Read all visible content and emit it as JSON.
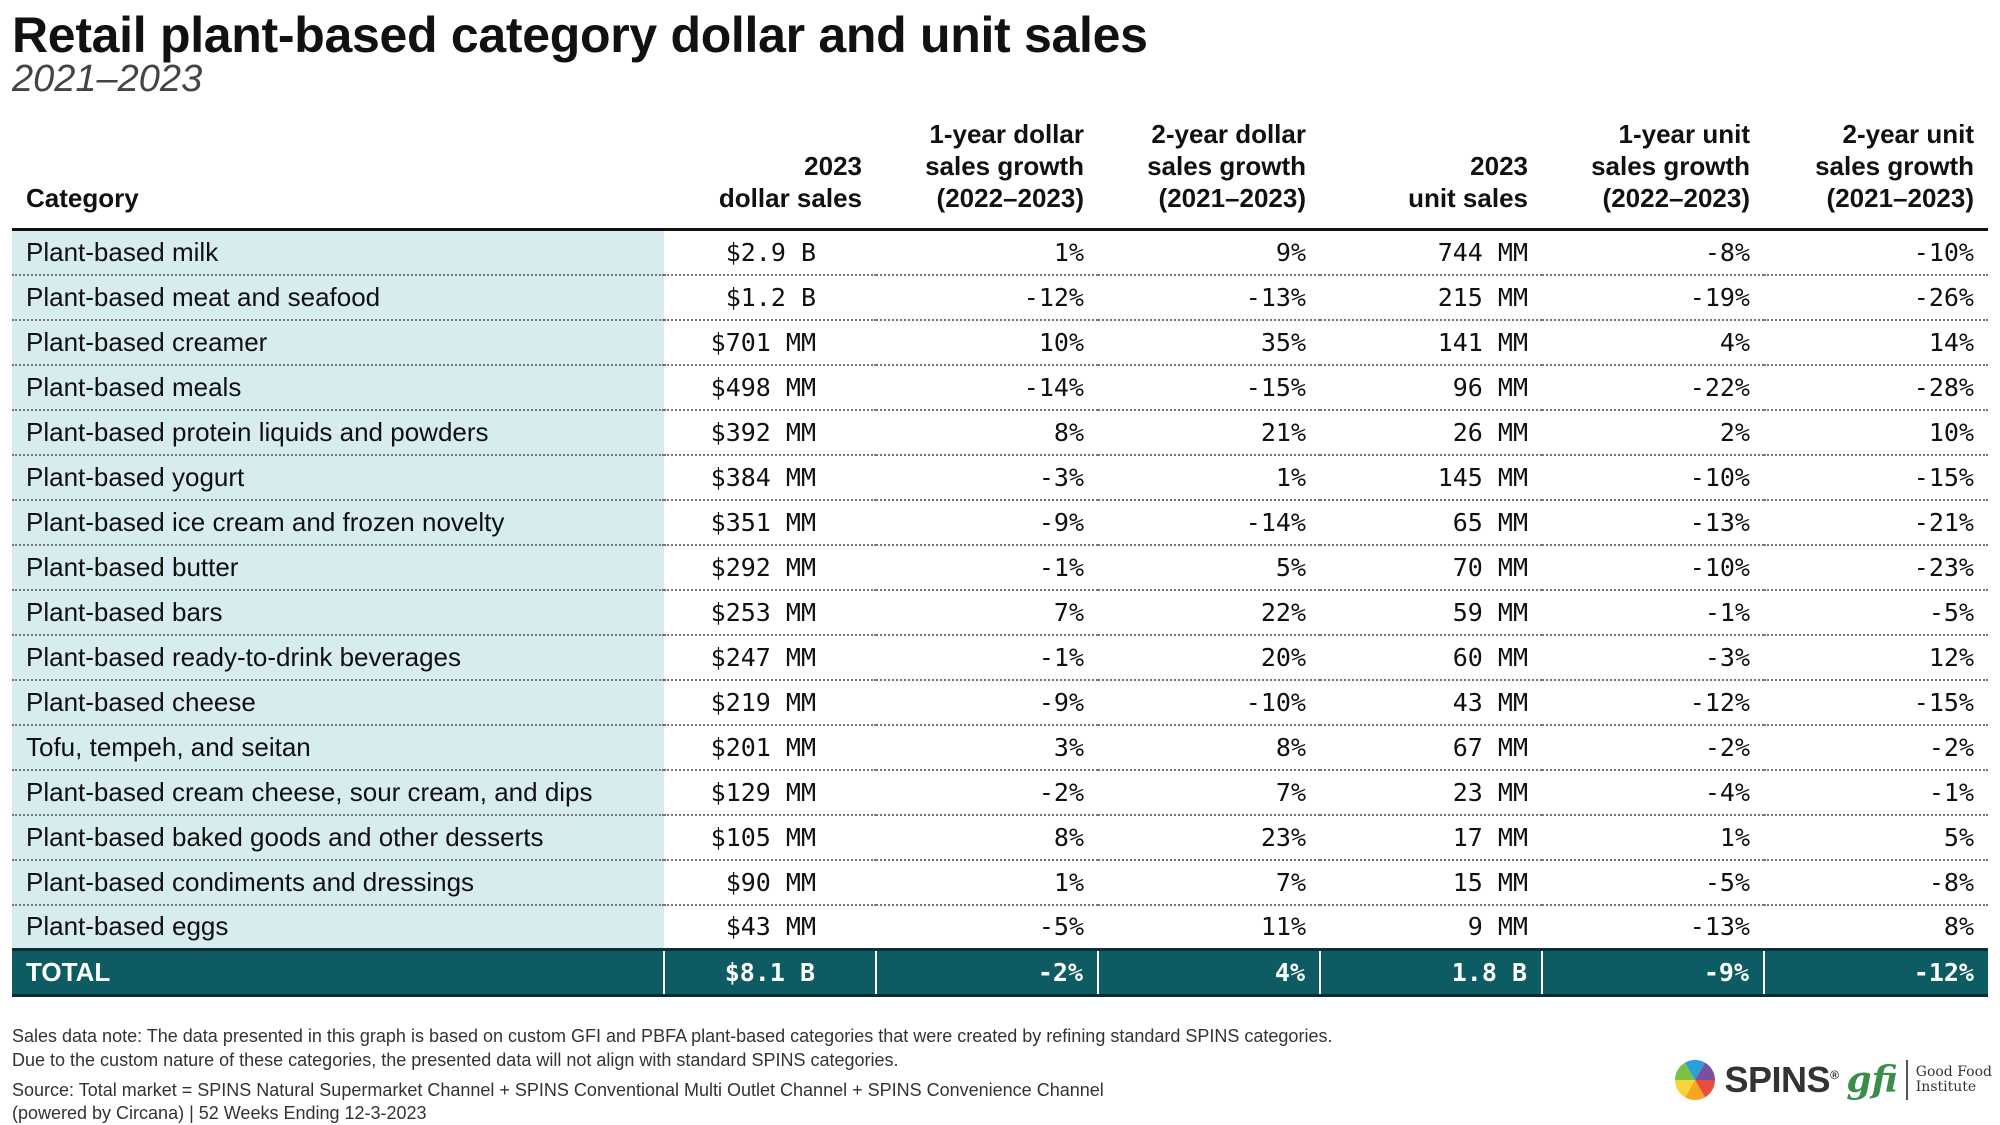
{
  "header": {
    "title": "Retail plant-based category dollar and unit sales",
    "subtitle": "2021–2023"
  },
  "chart_data": {
    "type": "table",
    "title": "Retail plant-based category dollar and unit sales",
    "subtitle": "2021–2023",
    "columns": [
      {
        "key": "category",
        "label_lines": [
          "Category"
        ]
      },
      {
        "key": "dollar_sales_2023",
        "label_lines": [
          "2023",
          "dollar sales"
        ]
      },
      {
        "key": "dollar_growth_1yr",
        "label_lines": [
          "1-year dollar",
          "sales growth",
          "(2022–2023)"
        ]
      },
      {
        "key": "dollar_growth_2yr",
        "label_lines": [
          "2-year dollar",
          "sales growth",
          "(2021–2023)"
        ]
      },
      {
        "key": "unit_sales_2023",
        "label_lines": [
          "2023",
          "unit sales"
        ]
      },
      {
        "key": "unit_growth_1yr",
        "label_lines": [
          "1-year unit",
          "sales growth",
          "(2022–2023)"
        ]
      },
      {
        "key": "unit_growth_2yr",
        "label_lines": [
          "2-year unit",
          "sales growth",
          "(2021–2023)"
        ]
      }
    ],
    "rows": [
      [
        "Plant-based milk",
        "$2.9 B",
        "1%",
        "9%",
        "744 MM",
        "-8%",
        "-10%"
      ],
      [
        "Plant-based meat and seafood",
        "$1.2 B",
        "-12%",
        "-13%",
        "215 MM",
        "-19%",
        "-26%"
      ],
      [
        "Plant-based creamer",
        "$701 MM",
        "10%",
        "35%",
        "141 MM",
        "4%",
        "14%"
      ],
      [
        "Plant-based meals",
        "$498 MM",
        "-14%",
        "-15%",
        "96 MM",
        "-22%",
        "-28%"
      ],
      [
        "Plant-based protein liquids and powders",
        "$392 MM",
        "8%",
        "21%",
        "26 MM",
        "2%",
        "10%"
      ],
      [
        "Plant-based yogurt",
        "$384 MM",
        "-3%",
        "1%",
        "145 MM",
        "-10%",
        "-15%"
      ],
      [
        "Plant-based ice cream and frozen novelty",
        "$351 MM",
        "-9%",
        "-14%",
        "65 MM",
        "-13%",
        "-21%"
      ],
      [
        "Plant-based butter",
        "$292 MM",
        "-1%",
        "5%",
        "70 MM",
        "-10%",
        "-23%"
      ],
      [
        "Plant-based bars",
        "$253 MM",
        "7%",
        "22%",
        "59 MM",
        "-1%",
        "-5%"
      ],
      [
        "Plant-based ready-to-drink beverages",
        "$247 MM",
        "-1%",
        "20%",
        "60 MM",
        "-3%",
        "12%"
      ],
      [
        "Plant-based cheese",
        "$219 MM",
        "-9%",
        "-10%",
        "43 MM",
        "-12%",
        "-15%"
      ],
      [
        "Tofu, tempeh, and seitan",
        "$201 MM",
        "3%",
        "8%",
        "67 MM",
        "-2%",
        "-2%"
      ],
      [
        "Plant-based cream cheese, sour cream, and dips",
        "$129 MM",
        "-2%",
        "7%",
        "23 MM",
        "-4%",
        "-1%"
      ],
      [
        "Plant-based baked goods and other desserts",
        "$105 MM",
        "8%",
        "23%",
        "17 MM",
        "1%",
        "5%"
      ],
      [
        "Plant-based condiments and dressings",
        "$90 MM",
        "1%",
        "7%",
        "15 MM",
        "-5%",
        "-8%"
      ],
      [
        "Plant-based eggs",
        "$43 MM",
        "-5%",
        "11%",
        "9 MM",
        "-13%",
        "8%"
      ]
    ],
    "total": [
      "TOTAL",
      "$8.1 B",
      "-2%",
      "4%",
      "1.8 B",
      "-9%",
      "-12%"
    ]
  },
  "footer": {
    "note_line1": "Sales data note: The data presented in this graph is based on custom GFI and PBFA plant-based categories that were created by refining standard SPINS categories.",
    "note_line2": "Due to the custom nature of these categories, the presented data will not align with standard SPINS categories.",
    "source_line1": "Source: Total market = SPINS Natural Supermarket Channel + SPINS Conventional Multi Outlet Channel + SPINS Convenience Channel",
    "source_line2": "(powered by Circana) | 52 Weeks Ending 12-3-2023"
  },
  "logos": {
    "spins": "SPINS",
    "gfi": "gfi",
    "gfi_name_line1": "Good Food",
    "gfi_name_line2": "Institute",
    "spins_colors": [
      "#e94e3c",
      "#f6a623",
      "#f7d538",
      "#7cc142",
      "#2a9fd8",
      "#7b4fa0"
    ],
    "header_fill": "#0e5c63",
    "category_fill": "#d6ecef"
  }
}
